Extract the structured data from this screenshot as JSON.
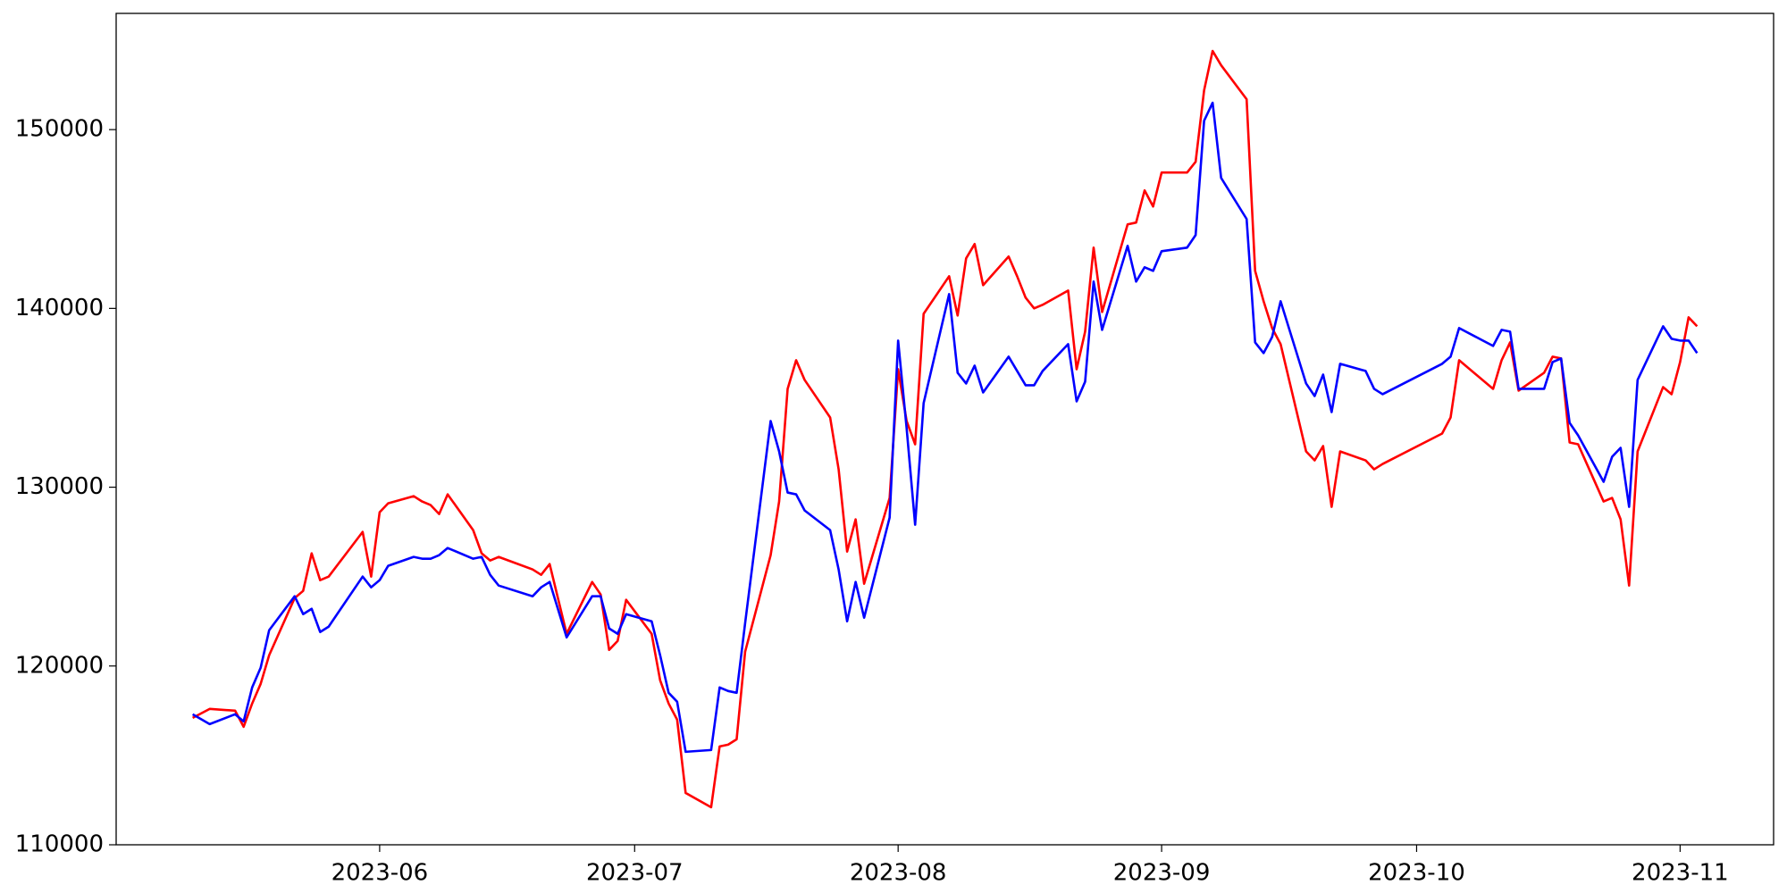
{
  "chart_data": {
    "type": "line",
    "x": [
      "2023-05-10",
      "2023-05-12",
      "2023-05-15",
      "2023-05-16",
      "2023-05-17",
      "2023-05-18",
      "2023-05-19",
      "2023-05-22",
      "2023-05-23",
      "2023-05-24",
      "2023-05-25",
      "2023-05-26",
      "2023-05-30",
      "2023-05-31",
      "2023-06-01",
      "2023-06-02",
      "2023-06-05",
      "2023-06-06",
      "2023-06-07",
      "2023-06-08",
      "2023-06-09",
      "2023-06-12",
      "2023-06-13",
      "2023-06-14",
      "2023-06-15",
      "2023-06-19",
      "2023-06-20",
      "2023-06-21",
      "2023-06-23",
      "2023-06-26",
      "2023-06-27",
      "2023-06-28",
      "2023-06-29",
      "2023-06-30",
      "2023-07-03",
      "2023-07-04",
      "2023-07-05",
      "2023-07-06",
      "2023-07-07",
      "2023-07-10",
      "2023-07-11",
      "2023-07-12",
      "2023-07-13",
      "2023-07-14",
      "2023-07-17",
      "2023-07-18",
      "2023-07-19",
      "2023-07-20",
      "2023-07-21",
      "2023-07-24",
      "2023-07-25",
      "2023-07-26",
      "2023-07-27",
      "2023-07-28",
      "2023-07-31",
      "2023-08-01",
      "2023-08-02",
      "2023-08-03",
      "2023-08-04",
      "2023-08-07",
      "2023-08-08",
      "2023-08-09",
      "2023-08-10",
      "2023-08-11",
      "2023-08-14",
      "2023-08-15",
      "2023-08-16",
      "2023-08-17",
      "2023-08-18",
      "2023-08-21",
      "2023-08-22",
      "2023-08-23",
      "2023-08-24",
      "2023-08-25",
      "2023-08-28",
      "2023-08-29",
      "2023-08-30",
      "2023-08-31",
      "2023-09-01",
      "2023-09-04",
      "2023-09-05",
      "2023-09-06",
      "2023-09-07",
      "2023-09-08",
      "2023-09-11",
      "2023-09-12",
      "2023-09-13",
      "2023-09-14",
      "2023-09-15",
      "2023-09-18",
      "2023-09-19",
      "2023-09-20",
      "2023-09-21",
      "2023-09-22",
      "2023-09-25",
      "2023-09-26",
      "2023-09-27",
      "2023-10-04",
      "2023-10-05",
      "2023-10-06",
      "2023-10-10",
      "2023-10-11",
      "2023-10-12",
      "2023-10-13",
      "2023-10-16",
      "2023-10-17",
      "2023-10-18",
      "2023-10-19",
      "2023-10-20",
      "2023-10-23",
      "2023-10-24",
      "2023-10-25",
      "2023-10-26",
      "2023-10-27",
      "2023-10-30",
      "2023-10-31",
      "2023-11-01",
      "2023-11-02",
      "2023-11-03"
    ],
    "series": [
      {
        "color": "#ff0000",
        "values": [
          117100,
          117600,
          117500,
          116600,
          117900,
          119000,
          120600,
          123800,
          124200,
          126300,
          124800,
          125000,
          127500,
          125000,
          128600,
          129100,
          129500,
          129200,
          129000,
          128500,
          129600,
          127600,
          126300,
          125900,
          126100,
          125400,
          125100,
          125700,
          121800,
          124700,
          124000,
          120900,
          121400,
          123700,
          121800,
          119200,
          117900,
          117000,
          112900,
          112100,
          115500,
          115600,
          115900,
          120800,
          126200,
          129200,
          135500,
          137100,
          136000,
          133900,
          131000,
          126400,
          128200,
          124600,
          129400,
          136600,
          133700,
          132400,
          139700,
          141800,
          139600,
          142800,
          143600,
          141300,
          142900,
          141800,
          140600,
          140000,
          140200,
          141000,
          136600,
          138700,
          143400,
          139800,
          144700,
          144800,
          146600,
          145700,
          147600,
          147600,
          148200,
          152200,
          154400,
          153600,
          151700,
          142100,
          140400,
          138900,
          138000,
          132000,
          131500,
          132300,
          128900,
          132000,
          131500,
          131000,
          131300,
          133000,
          133900,
          137100,
          135500,
          137100,
          138100,
          135400,
          136400,
          137300,
          137200,
          132500,
          132400,
          129200,
          129400,
          128200,
          124500,
          132000,
          135600,
          135200,
          137000,
          139500,
          139000
        ]
      },
      {
        "color": "#0000ff",
        "values": [
          117300,
          116750,
          117300,
          116900,
          118800,
          119900,
          122000,
          123900,
          122900,
          123200,
          121900,
          122200,
          125000,
          124400,
          124800,
          125600,
          126100,
          126000,
          126000,
          126200,
          126600,
          126000,
          126100,
          125100,
          124500,
          123900,
          124400,
          124700,
          121600,
          123900,
          123900,
          122100,
          121800,
          122900,
          122500,
          120600,
          118500,
          118000,
          115200,
          115300,
          118800,
          118600,
          118500,
          122400,
          133700,
          132000,
          129700,
          129600,
          128700,
          127600,
          125400,
          122500,
          124700,
          122700,
          128300,
          138200,
          133300,
          127900,
          134700,
          140800,
          136400,
          135800,
          136800,
          135300,
          137300,
          136500,
          135700,
          135700,
          136500,
          138000,
          134800,
          135900,
          141500,
          138800,
          143500,
          141500,
          142300,
          142100,
          143200,
          143400,
          144100,
          150500,
          151500,
          147300,
          145000,
          138100,
          137500,
          138400,
          140400,
          135800,
          135100,
          136300,
          134200,
          136900,
          136500,
          135500,
          135200,
          136900,
          137300,
          138900,
          137900,
          138800,
          138700,
          135500,
          135500,
          137000,
          137200,
          133600,
          132900,
          130300,
          131700,
          132200,
          128900,
          136000,
          139000,
          138300,
          138200,
          138200,
          137500
        ]
      }
    ],
    "xlim": [
      "2023-05-01",
      "2023-11-12"
    ],
    "xticks": [
      {
        "value": "2023-06-01",
        "label": "2023-06"
      },
      {
        "value": "2023-07-01",
        "label": "2023-07"
      },
      {
        "value": "2023-08-01",
        "label": "2023-08"
      },
      {
        "value": "2023-09-01",
        "label": "2023-09"
      },
      {
        "value": "2023-10-01",
        "label": "2023-10"
      },
      {
        "value": "2023-11-01",
        "label": "2023-11"
      }
    ],
    "ylim": [
      110000,
      156500
    ],
    "yticks": [
      110000,
      120000,
      130000,
      140000,
      150000
    ]
  }
}
